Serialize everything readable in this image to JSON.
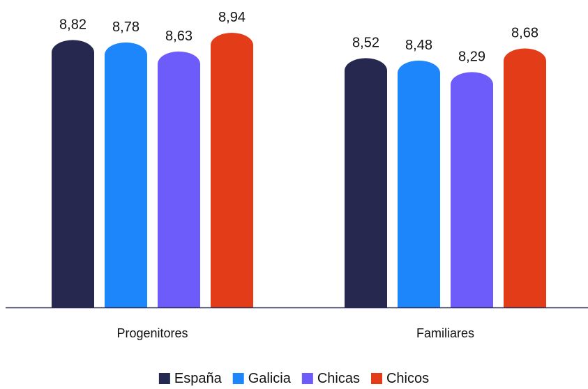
{
  "chart_data": {
    "type": "bar",
    "categories": [
      "Progenitores",
      "Familiares"
    ],
    "series": [
      {
        "name": "España",
        "color": "#262850",
        "values": [
          8.82,
          8.52
        ],
        "labels": [
          "8,82",
          "8,52"
        ]
      },
      {
        "name": "Galicia",
        "color": "#1e86fb",
        "values": [
          8.78,
          8.48
        ],
        "labels": [
          "8,78",
          "8,48"
        ]
      },
      {
        "name": "Chicas",
        "color": "#6e5cfa",
        "values": [
          8.63,
          8.29
        ],
        "labels": [
          "8,63",
          "8,29"
        ]
      },
      {
        "name": "Chicos",
        "color": "#e33c18",
        "values": [
          8.94,
          8.68
        ],
        "labels": [
          "8,94",
          "8,68"
        ]
      }
    ],
    "ylim": [
      4.4,
      9.02
    ],
    "grid": false,
    "legend_position": "bottom",
    "axis_color": "#262850"
  }
}
